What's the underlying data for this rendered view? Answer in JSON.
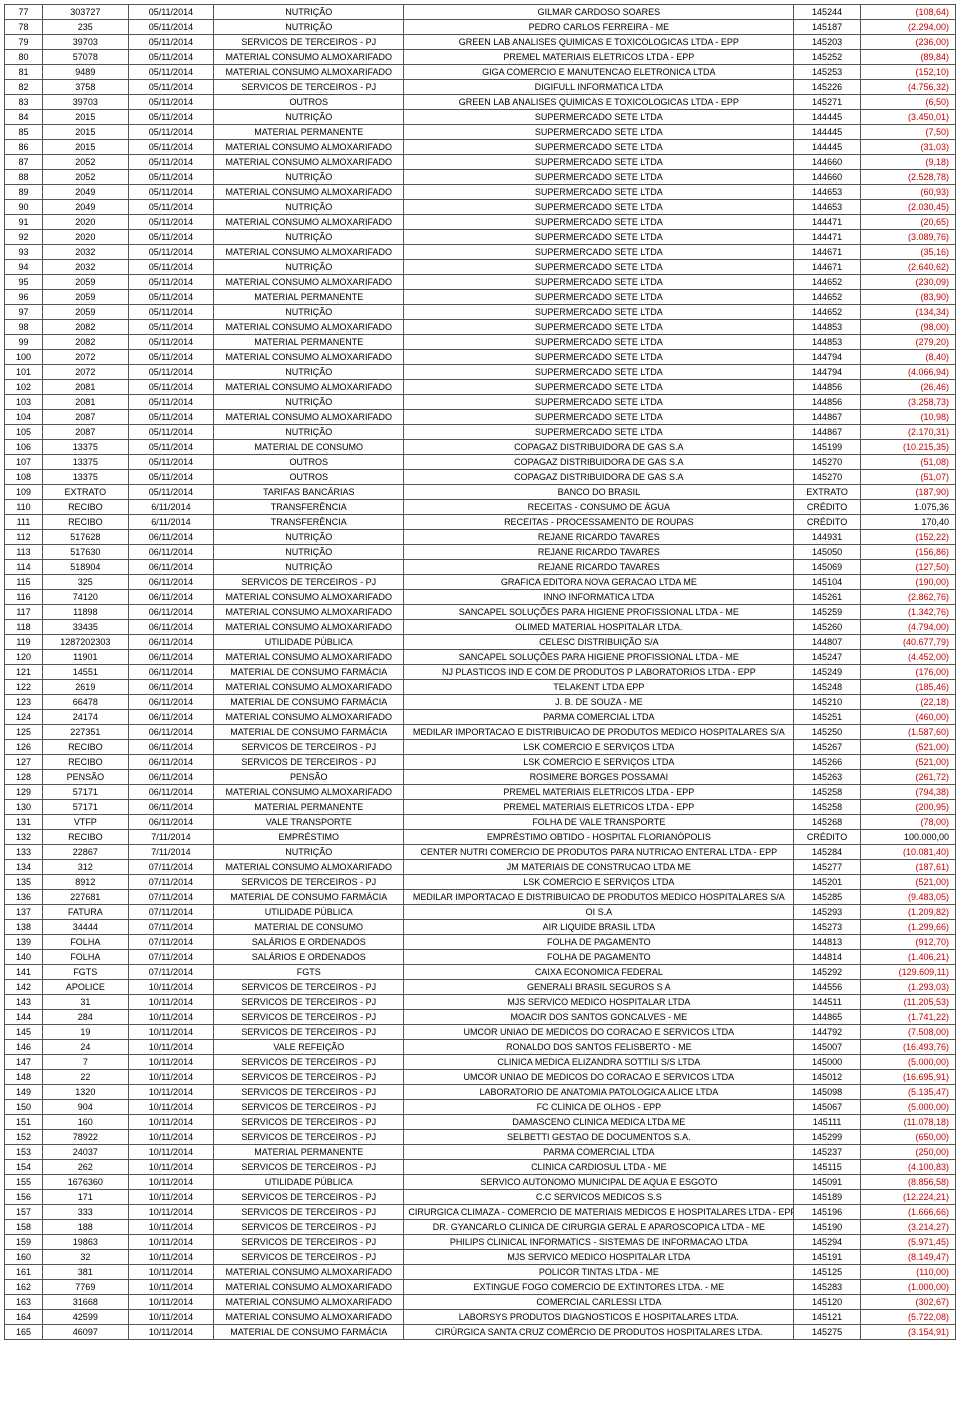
{
  "table": {
    "columns": [
      {
        "key": "seq",
        "width": "4%",
        "align": "center"
      },
      {
        "key": "doc",
        "width": "9%",
        "align": "center"
      },
      {
        "key": "date",
        "width": "9%",
        "align": "center"
      },
      {
        "key": "category",
        "width": "20%",
        "align": "center"
      },
      {
        "key": "party",
        "width": "41%",
        "align": "center"
      },
      {
        "key": "ref",
        "width": "7%",
        "align": "center"
      },
      {
        "key": "amount",
        "width": "10%",
        "align": "right"
      }
    ],
    "colors": {
      "text": "#000000",
      "negative": "#cc0000",
      "border": "#555555",
      "background": "#ffffff"
    },
    "fontsize": 9,
    "rows": [
      [
        "77",
        "303727",
        "05/11/2014",
        "NUTRIÇÃO",
        "GILMAR CARDOSO SOARES",
        "145244",
        "(108,64)"
      ],
      [
        "78",
        "235",
        "05/11/2014",
        "NUTRIÇÃO",
        "PEDRO CARLOS FERREIRA - ME",
        "145187",
        "(2.294,00)"
      ],
      [
        "79",
        "39703",
        "05/11/2014",
        "SERVICOS DE TERCEIROS - PJ",
        "GREEN LAB ANALISES QUIMICAS E TOXICOLOGICAS LTDA - EPP",
        "145203",
        "(236,00)"
      ],
      [
        "80",
        "57078",
        "05/11/2014",
        "MATERIAL CONSUMO ALMOXARIFADO",
        "PREMEL MATERIAIS ELETRICOS LTDA - EPP",
        "145252",
        "(89,84)"
      ],
      [
        "81",
        "9489",
        "05/11/2014",
        "MATERIAL CONSUMO ALMOXARIFADO",
        "GIGA COMERCIO E MANUTENCAO ELETRONICA LTDA",
        "145253",
        "(152,10)"
      ],
      [
        "82",
        "3758",
        "05/11/2014",
        "SERVICOS DE TERCEIROS - PJ",
        "DIGIFULL INFORMATICA LTDA",
        "145226",
        "(4.756,32)"
      ],
      [
        "83",
        "39703",
        "05/11/2014",
        "OUTROS",
        "GREEN LAB ANALISES QUIMICAS E TOXICOLOGICAS LTDA - EPP",
        "145271",
        "(6,50)"
      ],
      [
        "84",
        "2015",
        "05/11/2014",
        "NUTRIÇÃO",
        "SUPERMERCADO SETE LTDA",
        "144445",
        "(3.450,01)"
      ],
      [
        "85",
        "2015",
        "05/11/2014",
        "MATERIAL PERMANENTE",
        "SUPERMERCADO SETE LTDA",
        "144445",
        "(7,50)"
      ],
      [
        "86",
        "2015",
        "05/11/2014",
        "MATERIAL CONSUMO ALMOXARIFADO",
        "SUPERMERCADO SETE LTDA",
        "144445",
        "(31,03)"
      ],
      [
        "87",
        "2052",
        "05/11/2014",
        "MATERIAL CONSUMO ALMOXARIFADO",
        "SUPERMERCADO SETE LTDA",
        "144660",
        "(9,18)"
      ],
      [
        "88",
        "2052",
        "05/11/2014",
        "NUTRIÇÃO",
        "SUPERMERCADO SETE LTDA",
        "144660",
        "(2.528,78)"
      ],
      [
        "89",
        "2049",
        "05/11/2014",
        "MATERIAL CONSUMO ALMOXARIFADO",
        "SUPERMERCADO SETE LTDA",
        "144653",
        "(60,93)"
      ],
      [
        "90",
        "2049",
        "05/11/2014",
        "NUTRIÇÃO",
        "SUPERMERCADO SETE LTDA",
        "144653",
        "(2.030,45)"
      ],
      [
        "91",
        "2020",
        "05/11/2014",
        "MATERIAL CONSUMO ALMOXARIFADO",
        "SUPERMERCADO SETE LTDA",
        "144471",
        "(20,65)"
      ],
      [
        "92",
        "2020",
        "05/11/2014",
        "NUTRIÇÃO",
        "SUPERMERCADO SETE LTDA",
        "144471",
        "(3.089,76)"
      ],
      [
        "93",
        "2032",
        "05/11/2014",
        "MATERIAL CONSUMO ALMOXARIFADO",
        "SUPERMERCADO SETE LTDA",
        "144671",
        "(35,16)"
      ],
      [
        "94",
        "2032",
        "05/11/2014",
        "NUTRIÇÃO",
        "SUPERMERCADO SETE LTDA",
        "144671",
        "(2.640,62)"
      ],
      [
        "95",
        "2059",
        "05/11/2014",
        "MATERIAL CONSUMO ALMOXARIFADO",
        "SUPERMERCADO SETE LTDA",
        "144652",
        "(230,09)"
      ],
      [
        "96",
        "2059",
        "05/11/2014",
        "MATERIAL PERMANENTE",
        "SUPERMERCADO SETE LTDA",
        "144652",
        "(83,90)"
      ],
      [
        "97",
        "2059",
        "05/11/2014",
        "NUTRIÇÃO",
        "SUPERMERCADO SETE LTDA",
        "144652",
        "(134,34)"
      ],
      [
        "98",
        "2082",
        "05/11/2014",
        "MATERIAL CONSUMO ALMOXARIFADO",
        "SUPERMERCADO SETE LTDA",
        "144853",
        "(98,00)"
      ],
      [
        "99",
        "2082",
        "05/11/2014",
        "MATERIAL PERMANENTE",
        "SUPERMERCADO SETE LTDA",
        "144853",
        "(279,20)"
      ],
      [
        "100",
        "2072",
        "05/11/2014",
        "MATERIAL CONSUMO ALMOXARIFADO",
        "SUPERMERCADO SETE LTDA",
        "144794",
        "(8,40)"
      ],
      [
        "101",
        "2072",
        "05/11/2014",
        "NUTRIÇÃO",
        "SUPERMERCADO SETE LTDA",
        "144794",
        "(4.066,94)"
      ],
      [
        "102",
        "2081",
        "05/11/2014",
        "MATERIAL CONSUMO ALMOXARIFADO",
        "SUPERMERCADO SETE LTDA",
        "144856",
        "(26,46)"
      ],
      [
        "103",
        "2081",
        "05/11/2014",
        "NUTRIÇÃO",
        "SUPERMERCADO SETE LTDA",
        "144856",
        "(3.258,73)"
      ],
      [
        "104",
        "2087",
        "05/11/2014",
        "MATERIAL CONSUMO ALMOXARIFADO",
        "SUPERMERCADO SETE LTDA",
        "144867",
        "(10,98)"
      ],
      [
        "105",
        "2087",
        "05/11/2014",
        "NUTRIÇÃO",
        "SUPERMERCADO SETE LTDA",
        "144867",
        "(2.170,31)"
      ],
      [
        "106",
        "13375",
        "05/11/2014",
        "MATERIAL DE CONSUMO",
        "COPAGAZ DISTRIBUIDORA DE GAS S.A",
        "145199",
        "(10.215,35)"
      ],
      [
        "107",
        "13375",
        "05/11/2014",
        "OUTROS",
        "COPAGAZ DISTRIBUIDORA DE GAS S.A",
        "145270",
        "(51,08)"
      ],
      [
        "108",
        "13375",
        "05/11/2014",
        "OUTROS",
        "COPAGAZ DISTRIBUIDORA DE GAS S.A",
        "145270",
        "(51,07)"
      ],
      [
        "109",
        "EXTRATO",
        "05/11/2014",
        "TARIFAS BANCÁRIAS",
        "BANCO DO BRASIL",
        "EXTRATO",
        "(187,90)"
      ],
      [
        "110",
        "RECIBO",
        "6/11/2014",
        "TRANSFERÊNCIA",
        "RECEITAS - CONSUMO DE ÁGUA",
        "CRÉDITO",
        "1.075,36"
      ],
      [
        "111",
        "RECIBO",
        "6/11/2014",
        "TRANSFERÊNCIA",
        "RECEITAS - PROCESSAMENTO DE ROUPAS",
        "CRÉDITO",
        "170,40"
      ],
      [
        "112",
        "517628",
        "06/11/2014",
        "NUTRIÇÃO",
        "REJANE RICARDO TAVARES",
        "144931",
        "(152,22)"
      ],
      [
        "113",
        "517630",
        "06/11/2014",
        "NUTRIÇÃO",
        "REJANE RICARDO TAVARES",
        "145050",
        "(156,86)"
      ],
      [
        "114",
        "518904",
        "06/11/2014",
        "NUTRIÇÃO",
        "REJANE RICARDO TAVARES",
        "145069",
        "(127,50)"
      ],
      [
        "115",
        "325",
        "06/11/2014",
        "SERVICOS DE TERCEIROS - PJ",
        "GRAFICA EDITORA NOVA GERACAO LTDA ME",
        "145104",
        "(190,00)"
      ],
      [
        "116",
        "74120",
        "06/11/2014",
        "MATERIAL CONSUMO ALMOXARIFADO",
        "INNO INFORMATICA LTDA",
        "145261",
        "(2.862,76)"
      ],
      [
        "117",
        "11898",
        "06/11/2014",
        "MATERIAL CONSUMO ALMOXARIFADO",
        "SANCAPEL SOLUÇÕES PARA HIGIENE PROFISSIONAL LTDA - ME",
        "145259",
        "(1.342,76)"
      ],
      [
        "118",
        "33435",
        "06/11/2014",
        "MATERIAL CONSUMO ALMOXARIFADO",
        "OLIMED MATERIAL HOSPITALAR LTDA.",
        "145260",
        "(4.794,00)"
      ],
      [
        "119",
        "1287202303",
        "06/11/2014",
        "UTILIDADE PÚBLICA",
        "CELESC DISTRIBUIÇÃO S/A",
        "144807",
        "(40.677,79)"
      ],
      [
        "120",
        "11901",
        "06/11/2014",
        "MATERIAL CONSUMO ALMOXARIFADO",
        "SANCAPEL SOLUÇÕES PARA HIGIENE PROFISSIONAL LTDA - ME",
        "145247",
        "(4.452,00)"
      ],
      [
        "121",
        "14551",
        "06/11/2014",
        "MATERIAL DE CONSUMO FARMÁCIA",
        "NJ PLASTICOS IND E COM DE PRODUTOS P LABORATORIOS LTDA - EPP",
        "145249",
        "(176,00)"
      ],
      [
        "122",
        "2619",
        "06/11/2014",
        "MATERIAL CONSUMO ALMOXARIFADO",
        "TELAKENT LTDA EPP",
        "145248",
        "(185,46)"
      ],
      [
        "123",
        "66478",
        "06/11/2014",
        "MATERIAL DE CONSUMO FARMÁCIA",
        "J. B. DE SOUZA - ME",
        "145210",
        "(22,18)"
      ],
      [
        "124",
        "24174",
        "06/11/2014",
        "MATERIAL CONSUMO ALMOXARIFADO",
        "PARMA COMERCIAL LTDA",
        "145251",
        "(460,00)"
      ],
      [
        "125",
        "227351",
        "06/11/2014",
        "MATERIAL DE CONSUMO FARMÁCIA",
        "MEDILAR IMPORTACAO E DISTRIBUICAO DE PRODUTOS MEDICO HOSPITALARES S/A",
        "145250",
        "(1.587,60)"
      ],
      [
        "126",
        "RECIBO",
        "06/11/2014",
        "SERVICOS DE TERCEIROS - PJ",
        "LSK COMERCIO E SERVIÇOS LTDA",
        "145267",
        "(521,00)"
      ],
      [
        "127",
        "RECIBO",
        "06/11/2014",
        "SERVICOS DE TERCEIROS - PJ",
        "LSK COMERCIO E SERVIÇOS LTDA",
        "145266",
        "(521,00)"
      ],
      [
        "128",
        "PENSÃO",
        "06/11/2014",
        "PENSÃO",
        "ROSIMERE BORGES POSSAMAI",
        "145263",
        "(261,72)"
      ],
      [
        "129",
        "57171",
        "06/11/2014",
        "MATERIAL CONSUMO ALMOXARIFADO",
        "PREMEL MATERIAIS ELETRICOS LTDA - EPP",
        "145258",
        "(794,38)"
      ],
      [
        "130",
        "57171",
        "06/11/2014",
        "MATERIAL PERMANENTE",
        "PREMEL MATERIAIS ELETRICOS LTDA - EPP",
        "145258",
        "(200,95)"
      ],
      [
        "131",
        "VTFP",
        "06/11/2014",
        "VALE TRANSPORTE",
        "FOLHA DE VALE TRANSPORTE",
        "145268",
        "(78,00)"
      ],
      [
        "132",
        "RECIBO",
        "7/11/2014",
        "EMPRÉSTIMO",
        "EMPRÉSTIMO OBTIDO - HOSPITAL FLORIANÓPOLIS",
        "CRÉDITO",
        "100.000,00"
      ],
      [
        "133",
        "22867",
        "7/11/2014",
        "NUTRIÇÃO",
        "CENTER NUTRI COMERCIO DE PRODUTOS PARA NUTRICAO ENTERAL LTDA - EPP",
        "145284",
        "(10.081,40)"
      ],
      [
        "134",
        "312",
        "07/11/2014",
        "MATERIAL CONSUMO ALMOXARIFADO",
        "JM MATERIAIS DE CONSTRUCAO LTDA ME",
        "145277",
        "(187,61)"
      ],
      [
        "135",
        "8912",
        "07/11/2014",
        "SERVICOS DE TERCEIROS - PJ",
        "LSK COMERCIO E SERVIÇOS LTDA",
        "145201",
        "(521,00)"
      ],
      [
        "136",
        "227681",
        "07/11/2014",
        "MATERIAL DE CONSUMO FARMÁCIA",
        "MEDILAR IMPORTACAO E DISTRIBUICAO DE PRODUTOS MEDICO HOSPITALARES S/A",
        "145285",
        "(9.483,05)"
      ],
      [
        "137",
        "FATURA",
        "07/11/2014",
        "UTILIDADE PÚBLICA",
        "OI S.A",
        "145293",
        "(1.209,82)"
      ],
      [
        "138",
        "34444",
        "07/11/2014",
        "MATERIAL DE CONSUMO",
        "AIR LIQUIDE BRASIL LTDA",
        "145273",
        "(1.299,66)"
      ],
      [
        "139",
        "FOLHA",
        "07/11/2014",
        "SALÁRIOS E ORDENADOS",
        "FOLHA DE PAGAMENTO",
        "144813",
        "(912,70)"
      ],
      [
        "140",
        "FOLHA",
        "07/11/2014",
        "SALÁRIOS E ORDENADOS",
        "FOLHA DE PAGAMENTO",
        "144814",
        "(1.406,21)"
      ],
      [
        "141",
        "FGTS",
        "07/11/2014",
        "FGTS",
        "CAIXA ECONOMICA FEDERAL",
        "145292",
        "(129.609,11)"
      ],
      [
        "142",
        "APOLICE",
        "10/11/2014",
        "SERVICOS DE TERCEIROS - PJ",
        "GENERALI BRASIL SEGUROS S A",
        "144556",
        "(1.293,03)"
      ],
      [
        "143",
        "31",
        "10/11/2014",
        "SERVICOS DE TERCEIROS - PJ",
        "MJS SERVICO MEDICO HOSPITALAR LTDA",
        "144511",
        "(11.205,53)"
      ],
      [
        "144",
        "284",
        "10/11/2014",
        "SERVICOS DE TERCEIROS - PJ",
        "MOACIR DOS SANTOS GONCALVES - ME",
        "144865",
        "(1.741,22)"
      ],
      [
        "145",
        "19",
        "10/11/2014",
        "SERVICOS DE TERCEIROS - PJ",
        "UMCOR UNIAO DE MEDICOS DO CORACAO E SERVICOS LTDA",
        "144792",
        "(7.508,00)"
      ],
      [
        "146",
        "24",
        "10/11/2014",
        "VALE REFEIÇÃO",
        "RONALDO DOS SANTOS FELISBERTO - ME",
        "145007",
        "(16.493,76)"
      ],
      [
        "147",
        "7",
        "10/11/2014",
        "SERVICOS DE TERCEIROS - PJ",
        "CLINICA MEDICA ELIZANDRA SOTTILI S/S LTDA",
        "145000",
        "(5.000,00)"
      ],
      [
        "148",
        "22",
        "10/11/2014",
        "SERVICOS DE TERCEIROS - PJ",
        "UMCOR UNIAO DE MEDICOS DO CORACAO E SERVICOS LTDA",
        "145012",
        "(16.695,91)"
      ],
      [
        "149",
        "1320",
        "10/11/2014",
        "SERVICOS DE TERCEIROS - PJ",
        "LABORATORIO DE ANATOMIA PATOLOGICA ALICE LTDA",
        "145098",
        "(5.135,47)"
      ],
      [
        "150",
        "904",
        "10/11/2014",
        "SERVICOS DE TERCEIROS - PJ",
        "FC CLINICA DE OLHOS - EPP",
        "145067",
        "(5.000,00)"
      ],
      [
        "151",
        "160",
        "10/11/2014",
        "SERVICOS DE TERCEIROS - PJ",
        "DAMASCENO CLINICA MEDICA LTDA ME",
        "145111",
        "(11.078,18)"
      ],
      [
        "152",
        "78922",
        "10/11/2014",
        "SERVICOS DE TERCEIROS - PJ",
        "SELBETTI GESTAO DE DOCUMENTOS S.A.",
        "145299",
        "(650,00)"
      ],
      [
        "153",
        "24037",
        "10/11/2014",
        "MATERIAL PERMANENTE",
        "PARMA COMERCIAL LTDA",
        "145237",
        "(250,00)"
      ],
      [
        "154",
        "262",
        "10/11/2014",
        "SERVICOS DE TERCEIROS - PJ",
        "CLINICA CARDIOSUL LTDA - ME",
        "145115",
        "(4.100,83)"
      ],
      [
        "155",
        "1676360",
        "10/11/2014",
        "UTILIDADE PÚBLICA",
        "SERVICO AUTONOMO MUNICIPAL DE AQUA E ESGOTO",
        "145091",
        "(8.856,58)"
      ],
      [
        "156",
        "171",
        "10/11/2014",
        "SERVICOS DE TERCEIROS - PJ",
        "C.C SERVICOS MEDICOS S.S",
        "145189",
        "(12.224,21)"
      ],
      [
        "157",
        "333",
        "10/11/2014",
        "SERVICOS DE TERCEIROS - PJ",
        "CIRURGICA CLIMAZA - COMERCIO DE MATERIAIS MEDICOS E HOSPITALARES LTDA - EPP",
        "145196",
        "(1.666,66)"
      ],
      [
        "158",
        "188",
        "10/11/2014",
        "SERVICOS DE TERCEIROS - PJ",
        "DR. GYANCARLO CLINICA DE CIRURGIA GERAL E APAROSCOPICA LTDA - ME",
        "145190",
        "(3.214,27)"
      ],
      [
        "159",
        "19863",
        "10/11/2014",
        "SERVICOS DE TERCEIROS - PJ",
        "PHILIPS CLINICAL INFORMATICS - SISTEMAS DE INFORMACAO LTDA",
        "145294",
        "(5.971,45)"
      ],
      [
        "160",
        "32",
        "10/11/2014",
        "SERVICOS DE TERCEIROS - PJ",
        "MJS SERVICO MEDICO HOSPITALAR LTDA",
        "145191",
        "(8.149,47)"
      ],
      [
        "161",
        "381",
        "10/11/2014",
        "MATERIAL CONSUMO ALMOXARIFADO",
        "POLICOR TINTAS LTDA - ME",
        "145125",
        "(110,00)"
      ],
      [
        "162",
        "7769",
        "10/11/2014",
        "MATERIAL CONSUMO ALMOXARIFADO",
        "EXTINGUE FOGO COMERCIO DE EXTINTORES LTDA. - ME",
        "145283",
        "(1.000,00)"
      ],
      [
        "163",
        "31668",
        "10/11/2014",
        "MATERIAL CONSUMO ALMOXARIFADO",
        "COMERCIAL CARLESSI LTDA",
        "145120",
        "(302,67)"
      ],
      [
        "164",
        "42599",
        "10/11/2014",
        "MATERIAL CONSUMO ALMOXARIFADO",
        "LABORSYS PRODUTOS DIAGNOSTICOS E HOSPITALARES LTDA.",
        "145121",
        "(5.722,08)"
      ],
      [
        "165",
        "46097",
        "10/11/2014",
        "MATERIAL DE CONSUMO FARMÁCIA",
        "CIRÚRGICA SANTA CRUZ COMÉRCIO DE PRODUTOS HOSPITALARES LTDA.",
        "145275",
        "(3.154,91)"
      ]
    ]
  }
}
